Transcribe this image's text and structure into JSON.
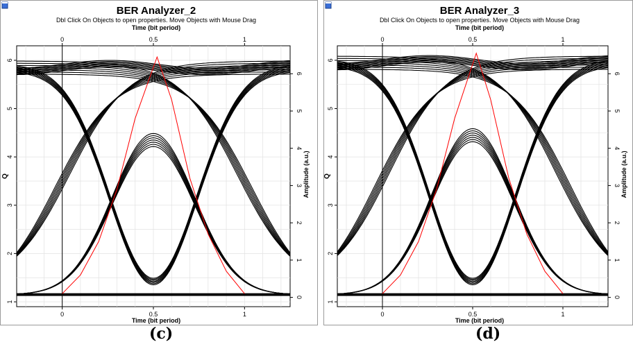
{
  "panels": [
    {
      "window_title": "BER Analyzer_2",
      "instruction": "Dbl Click On Objects to open properties.  Move Objects with Mouse Drag",
      "caption": "(c)",
      "icon": "window-icon"
    },
    {
      "window_title": "BER Analyzer_3",
      "instruction": "Dbl Click On Objects to open properties.  Move Objects with Mouse Drag",
      "caption": "(d)",
      "icon": "window-icon"
    }
  ],
  "chart_data": [
    {
      "type": "line",
      "title": "BER Analyzer_2",
      "subtitle": "Dbl Click On Objects to open properties.  Move Objects with Mouse Drag",
      "xlabel": "Time (bit period)",
      "ylabel": "Q",
      "y2label": "Amplitude (a.u.)",
      "xlim": [
        -0.25,
        1.25
      ],
      "ylim": [
        0.9,
        6.3
      ],
      "y2lim": [
        -0.25,
        6.75
      ],
      "x_ticks": [
        0,
        0.5,
        1
      ],
      "x_tick_labels": [
        "0",
        "0.5",
        "1"
      ],
      "y_ticks": [
        1,
        2,
        3,
        4,
        5,
        6
      ],
      "y_tick_labels": [
        "1",
        "2",
        "3",
        "4",
        "5",
        "6"
      ],
      "y2_ticks": [
        0,
        1,
        2,
        3,
        4,
        5,
        6
      ],
      "y2_tick_labels": [
        "0",
        "1",
        "2",
        "3",
        "4",
        "5",
        "6"
      ],
      "grid": true,
      "series": [
        {
          "color": "#ff0000",
          "x": [
            0.0,
            0.1,
            0.2,
            0.3,
            0.4,
            0.52,
            0.6,
            0.7,
            0.8,
            0.9,
            1.0
          ],
          "values": [
            0.1,
            0.6,
            1.5,
            2.9,
            4.8,
            6.45,
            5.3,
            3.2,
            1.7,
            0.7,
            0.1
          ]
        },
        {
          "color": "#000000",
          "description_values": "eye-diagram traces",
          "x": [
            -0.25,
            0.0,
            0.25,
            0.5,
            0.75,
            1.0,
            1.25
          ],
          "level_one": 5.85,
          "level_zero": 1.15,
          "eye_top": 4.35,
          "eye_bottom": 1.42,
          "crossing_low": 2.45,
          "crossing_high": 5.1
        }
      ]
    },
    {
      "type": "line",
      "title": "BER Analyzer_3",
      "subtitle": "Dbl Click On Objects to open properties.  Move Objects with Mouse Drag",
      "xlabel": "Time (bit period)",
      "ylabel": "Q",
      "y2label": "Amplitude (a.u.)",
      "xlim": [
        -0.25,
        1.25
      ],
      "ylim": [
        0.9,
        6.3
      ],
      "y2lim": [
        -0.25,
        6.75
      ],
      "x_ticks": [
        0,
        0.5,
        1
      ],
      "x_tick_labels": [
        "0",
        "0.5",
        "1"
      ],
      "y_ticks": [
        1,
        2,
        3,
        4,
        5,
        6
      ],
      "y_tick_labels": [
        "1",
        "2",
        "3",
        "4",
        "5",
        "6"
      ],
      "y2_ticks": [
        0,
        1,
        2,
        3,
        4,
        5,
        6
      ],
      "y2_tick_labels": [
        "0",
        "1",
        "2",
        "3",
        "4",
        "5",
        "6"
      ],
      "grid": true,
      "series": [
        {
          "color": "#ff0000",
          "x": [
            0.0,
            0.1,
            0.2,
            0.3,
            0.4,
            0.52,
            0.6,
            0.7,
            0.8,
            0.9,
            1.0
          ],
          "values": [
            0.1,
            0.6,
            1.5,
            2.9,
            4.8,
            6.55,
            5.3,
            3.2,
            1.7,
            0.7,
            0.1
          ]
        },
        {
          "color": "#000000",
          "x": [
            -0.25,
            0.0,
            0.25,
            0.5,
            0.75,
            1.0,
            1.25
          ],
          "level_one": 5.95,
          "level_zero": 1.15,
          "eye_top": 4.45,
          "eye_bottom": 1.42,
          "crossing_low": 2.5,
          "crossing_high": 5.2
        }
      ]
    }
  ]
}
